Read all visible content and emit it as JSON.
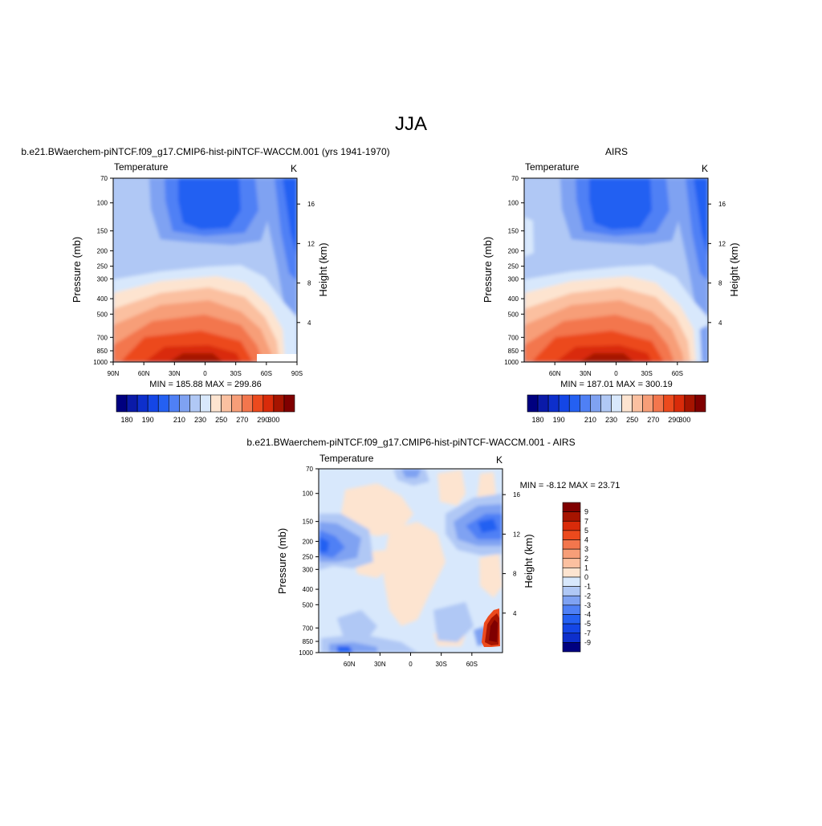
{
  "page_title": "JJA",
  "chart_data": [
    {
      "id": "model",
      "type": "heatmap",
      "title": "b.e21.BWaerchem-piNTCF.f09_g17.CMIP6-hist-piNTCF-WACCM.001 (yrs 1941-1970)",
      "left_label": "Temperature",
      "right_label": "K",
      "ylabel": "Pressure (mb)",
      "ylabel_right": "Height (km)",
      "x_ticks": [
        "90N",
        "60N",
        "30N",
        "0",
        "30S",
        "60S",
        "90S"
      ],
      "x_tick_values": [
        90,
        60,
        30,
        0,
        -30,
        -60,
        -90
      ],
      "xlim": [
        90,
        -90
      ],
      "y_ticks": [
        "70",
        "100",
        "150",
        "200",
        "250",
        "300",
        "400",
        "500",
        "700",
        "850",
        "1000"
      ],
      "y_tick_values": [
        70,
        100,
        150,
        200,
        250,
        300,
        400,
        500,
        700,
        850,
        1000
      ],
      "ylim": [
        1000,
        70
      ],
      "log_scale_y": true,
      "height_ticks": [
        "4",
        "8",
        "12",
        "16"
      ],
      "height_tick_values": [
        4,
        8,
        12,
        16
      ],
      "stats": "MIN = 185.88  MAX = 299.86",
      "min": 185.88,
      "max": 299.86,
      "colorbar": {
        "orientation": "horizontal",
        "levels": [
          180,
          185,
          190,
          195,
          200,
          205,
          210,
          220,
          230,
          240,
          250,
          260,
          270,
          280,
          290,
          300
        ],
        "labels": [
          "180",
          "190",
          "210",
          "230",
          "250",
          "270",
          "290",
          "300"
        ],
        "label_positions": [
          1,
          3,
          6,
          8,
          10,
          12,
          14,
          15
        ],
        "colors": [
          "#000080",
          "#0a1aa8",
          "#0d2fcc",
          "#1446e6",
          "#2460f2",
          "#4f80f5",
          "#7fa2f2",
          "#b0c8f5",
          "#d8e8fc",
          "#fde4d0",
          "#fbc0a0",
          "#f79e78",
          "#f3764d",
          "#ec4a1d",
          "#d92b0a",
          "#a61400",
          "#800000"
        ]
      },
      "clipped_corner": "bottom-right"
    },
    {
      "id": "obs",
      "type": "heatmap",
      "title": "AIRS",
      "left_label": "Temperature",
      "right_label": "K",
      "ylabel": "Pressure (mb)",
      "ylabel_right": "Height (km)",
      "x_ticks": [
        "60N",
        "30N",
        "0",
        "30S",
        "60S"
      ],
      "x_tick_values": [
        60,
        30,
        0,
        -30,
        -60
      ],
      "xlim": [
        90,
        -90
      ],
      "y_ticks": [
        "70",
        "100",
        "150",
        "200",
        "250",
        "300",
        "400",
        "500",
        "700",
        "850",
        "1000"
      ],
      "y_tick_values": [
        70,
        100,
        150,
        200,
        250,
        300,
        400,
        500,
        700,
        850,
        1000
      ],
      "ylim": [
        1000,
        70
      ],
      "log_scale_y": true,
      "height_ticks": [
        "4",
        "8",
        "12",
        "16"
      ],
      "height_tick_values": [
        4,
        8,
        12,
        16
      ],
      "stats": "MIN = 187.01  MAX = 300.19",
      "min": 187.01,
      "max": 300.19,
      "colorbar": {
        "orientation": "horizontal",
        "levels": [
          180,
          185,
          190,
          195,
          200,
          205,
          210,
          220,
          230,
          240,
          250,
          260,
          270,
          280,
          290,
          300
        ],
        "labels": [
          "180",
          "190",
          "210",
          "230",
          "250",
          "270",
          "290",
          "300"
        ],
        "label_positions": [
          1,
          3,
          6,
          8,
          10,
          12,
          14,
          15
        ],
        "colors": [
          "#000080",
          "#0a1aa8",
          "#0d2fcc",
          "#1446e6",
          "#2460f2",
          "#4f80f5",
          "#7fa2f2",
          "#b0c8f5",
          "#d8e8fc",
          "#fde4d0",
          "#fbc0a0",
          "#f79e78",
          "#f3764d",
          "#ec4a1d",
          "#d92b0a",
          "#a61400",
          "#800000"
        ]
      }
    },
    {
      "id": "diff",
      "type": "heatmap",
      "title": "b.e21.BWaerchem-piNTCF.f09_g17.CMIP6-hist-piNTCF-WACCM.001 - AIRS",
      "left_label": "Temperature",
      "right_label": "K",
      "ylabel": "Pressure (mb)",
      "ylabel_right": "Height (km)",
      "x_ticks": [
        "60N",
        "30N",
        "0",
        "30S",
        "60S"
      ],
      "x_tick_values": [
        60,
        30,
        0,
        -30,
        -60
      ],
      "xlim": [
        90,
        -90
      ],
      "y_ticks": [
        "70",
        "100",
        "150",
        "200",
        "250",
        "300",
        "400",
        "500",
        "700",
        "850",
        "1000"
      ],
      "y_tick_values": [
        70,
        100,
        150,
        200,
        250,
        300,
        400,
        500,
        700,
        850,
        1000
      ],
      "ylim": [
        1000,
        70
      ],
      "log_scale_y": true,
      "height_ticks": [
        "4",
        "8",
        "12",
        "16"
      ],
      "height_tick_values": [
        4,
        8,
        12,
        16
      ],
      "stats": "MIN =  -8.12  MAX =  23.71",
      "min": -8.12,
      "max": 23.71,
      "colorbar": {
        "orientation": "vertical",
        "labels": [
          "9",
          "7",
          "5",
          "4",
          "3",
          "2",
          "1",
          "0",
          "-1",
          "-2",
          "-3",
          "-4",
          "-5",
          "-7",
          "-9"
        ],
        "colors": [
          "#800000",
          "#a61400",
          "#d92b0a",
          "#ec4a1d",
          "#f3764d",
          "#f79e78",
          "#fbc0a0",
          "#fde4d0",
          "#d8e8fc",
          "#b0c8f5",
          "#7fa2f2",
          "#4f80f5",
          "#2460f2",
          "#1446e6",
          "#0d2fcc",
          "#000080"
        ]
      }
    }
  ]
}
